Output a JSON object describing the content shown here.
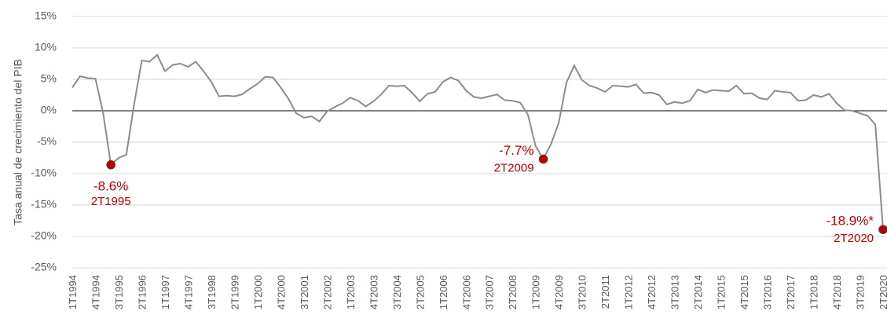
{
  "chart_data": {
    "type": "line",
    "y_label": "Tasa anual de crecimiento del PIB",
    "categories": [
      "1T1994",
      null,
      null,
      "4T1994",
      null,
      null,
      "3T1995",
      null,
      null,
      "2T1996",
      null,
      null,
      "1T1997",
      null,
      null,
      "4T1997",
      null,
      null,
      "3T1998",
      null,
      null,
      "2T1999",
      null,
      null,
      "1T2000",
      null,
      null,
      "4T2000",
      null,
      null,
      "3T2001",
      null,
      null,
      "2T2002",
      null,
      null,
      "1T2003",
      null,
      null,
      "4T2003",
      null,
      null,
      "3T2004",
      null,
      null,
      "2T2005",
      null,
      null,
      "1T2006",
      null,
      null,
      "4T2006",
      null,
      null,
      "3T2007",
      null,
      null,
      "2T2008",
      null,
      null,
      "1T2009",
      null,
      null,
      "4T2009",
      null,
      null,
      "3T2010",
      null,
      null,
      "2T2011",
      null,
      null,
      "1T2012",
      null,
      null,
      "4T2012",
      null,
      null,
      "3T2013",
      null,
      null,
      "2T2014",
      null,
      null,
      "1T2015",
      null,
      null,
      "4T2015",
      null,
      null,
      "3T2016",
      null,
      null,
      "2T2017",
      null,
      null,
      "1T2018",
      null,
      null,
      "4T2018",
      null,
      null,
      "3T2019",
      null,
      null,
      "2T2020"
    ],
    "series": [
      {
        "name": "PIB",
        "color": "#8c8c8c",
        "values": [
          3.7,
          5.5,
          5.2,
          5.1,
          -0.4,
          -8.6,
          -7.5,
          -7.0,
          1.0,
          8.0,
          7.8,
          8.9,
          6.3,
          7.3,
          7.5,
          7.0,
          7.8,
          6.3,
          4.6,
          2.3,
          2.4,
          2.3,
          2.6,
          3.5,
          4.3,
          5.4,
          5.3,
          3.7,
          1.9,
          -0.4,
          -1.1,
          -0.9,
          -1.7,
          -0.1,
          0.6,
          1.2,
          2.1,
          1.6,
          0.7,
          1.5,
          2.6,
          4.0,
          3.9,
          4.0,
          2.9,
          1.5,
          2.7,
          3.0,
          4.6,
          5.3,
          4.8,
          3.2,
          2.2,
          2.0,
          2.3,
          2.6,
          1.7,
          1.6,
          1.3,
          -0.6,
          -5.6,
          -7.7,
          -5.3,
          -1.9,
          4.5,
          7.2,
          4.9,
          4.0,
          3.6,
          3.0,
          4.0,
          3.9,
          3.8,
          4.2,
          2.8,
          2.9,
          2.5,
          1.0,
          1.4,
          1.2,
          1.6,
          3.4,
          2.9,
          3.3,
          3.2,
          3.1,
          4.0,
          2.7,
          2.8,
          2.0,
          1.8,
          3.2,
          3.0,
          2.9,
          1.6,
          1.7,
          2.5,
          2.2,
          2.7,
          1.2,
          0.1,
          0.0,
          -0.4,
          -0.8,
          -2.2,
          -18.9
        ]
      }
    ],
    "highlights": [
      {
        "value_label": "-8.6%",
        "period": "2T1995"
      },
      {
        "value_label": "-7.7%",
        "period": "2T2009"
      },
      {
        "value_label": "-18.9%*",
        "period": "2T2020"
      }
    ],
    "highlight_color": "#c00000",
    "ylim": [
      -25,
      15
    ],
    "yticks": [
      {
        "value": -25,
        "label": "-25%"
      },
      {
        "value": -20,
        "label": "-20%"
      },
      {
        "value": -15,
        "label": "-15%"
      },
      {
        "value": -10,
        "label": "-10%"
      },
      {
        "value": -5,
        "label": "-5%"
      },
      {
        "value": 0,
        "label": "0%"
      },
      {
        "value": 5,
        "label": "5%"
      },
      {
        "value": 10,
        "label": "10%"
      },
      {
        "value": 15,
        "label": "15%"
      }
    ],
    "grid": true
  }
}
